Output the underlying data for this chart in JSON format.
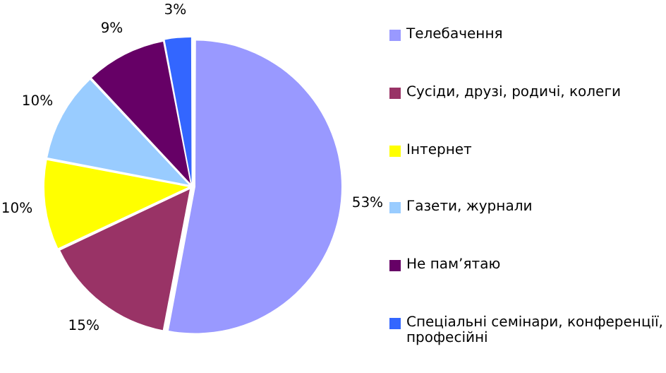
{
  "chart_data": {
    "type": "pie",
    "categories": [
      "Телебачення",
      "Сусіди, друзі, родичі, колеги",
      "Інтернет",
      "Газети, журнали",
      "Не пам’ятаю",
      "Спеціальні семінари, конференції, професійні"
    ],
    "values": [
      53,
      15,
      10,
      10,
      9,
      3
    ],
    "value_labels": [
      "53%",
      "15%",
      "10%",
      "10%",
      "9%",
      "3%"
    ],
    "colors": [
      "#9999ff",
      "#993366",
      "#ffff00",
      "#99ccff",
      "#660066",
      "#3366ff"
    ],
    "legend": "right"
  }
}
